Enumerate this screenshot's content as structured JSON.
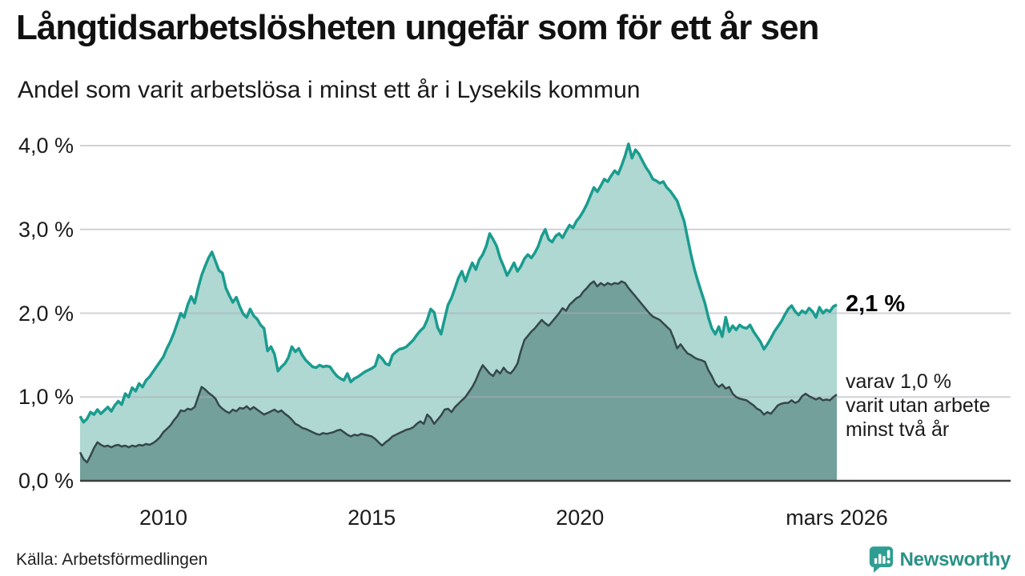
{
  "header": {
    "title": "Långtidsarbetslösheten ungefär som för ett år sen",
    "subtitle": "Andel som varit arbetslösa i minst ett år i Lysekils kommun"
  },
  "chart_data": {
    "type": "area",
    "title": "Långtidsarbetslösheten ungefär som för ett år sen",
    "subtitle": "Andel som varit arbetslösa i minst ett år i Lysekils kommun",
    "x_unit": "månad",
    "x_range": [
      2008.0,
      2026.1667
    ],
    "ylim": [
      0,
      4.0
    ],
    "grid": true,
    "colors": {
      "line1": "#1a9c8f",
      "fill1": "#aed8d1",
      "line2": "#35474c",
      "fill2": "#73a09a",
      "gridline": "rgba(172,172,184,0.55)",
      "axis": "#3f3f3f"
    },
    "yticks": [
      {
        "value": 4.0,
        "label": "4,0 %"
      },
      {
        "value": 3.0,
        "label": "3,0 %"
      },
      {
        "value": 2.0,
        "label": "2,0 %"
      },
      {
        "value": 1.0,
        "label": "1,0 %"
      },
      {
        "value": 0.0,
        "label": "0,0 %"
      }
    ],
    "xticks": [
      {
        "t": 2010.0,
        "label": "2010"
      },
      {
        "t": 2015.0,
        "label": "2015"
      },
      {
        "t": 2020.0,
        "label": "2020"
      },
      {
        "t": 2026.1667,
        "label": "mars 2026"
      }
    ],
    "series": [
      {
        "name": "Andel arbetslösa minst ett år",
        "end_value": 2.1,
        "values": [
          0.77,
          0.7,
          0.74,
          0.82,
          0.79,
          0.85,
          0.8,
          0.84,
          0.88,
          0.83,
          0.9,
          0.95,
          0.91,
          1.04,
          1.0,
          1.11,
          1.07,
          1.16,
          1.12,
          1.2,
          1.24,
          1.3,
          1.36,
          1.42,
          1.48,
          1.58,
          1.66,
          1.76,
          1.88,
          2.0,
          1.95,
          2.1,
          2.2,
          2.12,
          2.3,
          2.45,
          2.56,
          2.66,
          2.73,
          2.62,
          2.51,
          2.48,
          2.3,
          2.21,
          2.13,
          2.19,
          2.08,
          1.99,
          1.95,
          2.05,
          1.97,
          1.93,
          1.86,
          1.82,
          1.55,
          1.6,
          1.51,
          1.31,
          1.36,
          1.4,
          1.47,
          1.6,
          1.54,
          1.58,
          1.5,
          1.44,
          1.4,
          1.36,
          1.35,
          1.38,
          1.36,
          1.37,
          1.36,
          1.3,
          1.25,
          1.22,
          1.2,
          1.28,
          1.18,
          1.22,
          1.24,
          1.27,
          1.3,
          1.32,
          1.34,
          1.37,
          1.5,
          1.46,
          1.4,
          1.38,
          1.5,
          1.54,
          1.57,
          1.58,
          1.6,
          1.64,
          1.68,
          1.74,
          1.79,
          1.83,
          1.92,
          2.05,
          2.01,
          1.83,
          1.75,
          1.93,
          2.1,
          2.18,
          2.3,
          2.42,
          2.5,
          2.38,
          2.5,
          2.6,
          2.52,
          2.64,
          2.7,
          2.8,
          2.95,
          2.88,
          2.8,
          2.66,
          2.56,
          2.45,
          2.52,
          2.6,
          2.5,
          2.56,
          2.65,
          2.7,
          2.66,
          2.72,
          2.8,
          2.92,
          3.0,
          2.88,
          2.85,
          2.92,
          2.95,
          2.9,
          2.98,
          3.05,
          3.02,
          3.1,
          3.15,
          3.22,
          3.3,
          3.4,
          3.5,
          3.45,
          3.52,
          3.6,
          3.57,
          3.64,
          3.7,
          3.66,
          3.76,
          3.88,
          4.02,
          3.85,
          3.95,
          3.9,
          3.82,
          3.74,
          3.68,
          3.6,
          3.58,
          3.55,
          3.57,
          3.5,
          3.46,
          3.4,
          3.34,
          3.22,
          3.1,
          2.9,
          2.7,
          2.52,
          2.38,
          2.25,
          2.12,
          1.95,
          1.82,
          1.75,
          1.84,
          1.72,
          1.95,
          1.78,
          1.85,
          1.8,
          1.86,
          1.83,
          1.82,
          1.86,
          1.78,
          1.72,
          1.66,
          1.57,
          1.63,
          1.7,
          1.78,
          1.84,
          1.9,
          1.98,
          2.05,
          2.09,
          2.02,
          1.98,
          2.03,
          2.0,
          2.06,
          2.02,
          1.95,
          2.07,
          2.0,
          2.04,
          2.02,
          2.08,
          2.1
        ]
      },
      {
        "name": "Andel arbetslösa minst två år",
        "end_value": 1.0,
        "values": [
          0.34,
          0.26,
          0.22,
          0.3,
          0.39,
          0.46,
          0.43,
          0.41,
          0.42,
          0.4,
          0.42,
          0.43,
          0.41,
          0.42,
          0.4,
          0.42,
          0.41,
          0.43,
          0.42,
          0.44,
          0.43,
          0.45,
          0.48,
          0.52,
          0.58,
          0.62,
          0.66,
          0.72,
          0.77,
          0.84,
          0.83,
          0.86,
          0.85,
          0.88,
          1.0,
          1.12,
          1.09,
          1.05,
          1.02,
          0.98,
          0.9,
          0.86,
          0.83,
          0.81,
          0.85,
          0.83,
          0.87,
          0.86,
          0.89,
          0.85,
          0.88,
          0.85,
          0.82,
          0.79,
          0.81,
          0.83,
          0.85,
          0.82,
          0.84,
          0.8,
          0.77,
          0.73,
          0.68,
          0.66,
          0.63,
          0.62,
          0.6,
          0.58,
          0.56,
          0.55,
          0.57,
          0.56,
          0.57,
          0.58,
          0.6,
          0.61,
          0.58,
          0.55,
          0.53,
          0.55,
          0.54,
          0.56,
          0.55,
          0.54,
          0.53,
          0.5,
          0.46,
          0.42,
          0.46,
          0.49,
          0.53,
          0.55,
          0.57,
          0.59,
          0.61,
          0.62,
          0.64,
          0.68,
          0.71,
          0.68,
          0.79,
          0.75,
          0.68,
          0.73,
          0.78,
          0.85,
          0.86,
          0.82,
          0.88,
          0.92,
          0.96,
          1.0,
          1.06,
          1.12,
          1.2,
          1.3,
          1.38,
          1.33,
          1.28,
          1.25,
          1.32,
          1.28,
          1.35,
          1.3,
          1.28,
          1.33,
          1.4,
          1.55,
          1.68,
          1.73,
          1.78,
          1.82,
          1.87,
          1.92,
          1.88,
          1.85,
          1.9,
          1.95,
          2.0,
          2.06,
          2.03,
          2.1,
          2.14,
          2.18,
          2.2,
          2.26,
          2.3,
          2.35,
          2.38,
          2.32,
          2.36,
          2.33,
          2.36,
          2.34,
          2.36,
          2.35,
          2.38,
          2.36,
          2.3,
          2.25,
          2.2,
          2.15,
          2.1,
          2.05,
          2.0,
          1.96,
          1.94,
          1.92,
          1.88,
          1.84,
          1.8,
          1.7,
          1.58,
          1.63,
          1.57,
          1.52,
          1.5,
          1.47,
          1.45,
          1.44,
          1.42,
          1.32,
          1.25,
          1.16,
          1.12,
          1.15,
          1.1,
          1.12,
          1.04,
          1.0,
          0.98,
          0.97,
          0.96,
          0.93,
          0.9,
          0.86,
          0.84,
          0.79,
          0.82,
          0.8,
          0.85,
          0.9,
          0.92,
          0.93,
          0.93,
          0.96,
          0.93,
          0.95,
          1.01,
          1.04,
          1.01,
          0.99,
          0.97,
          0.99,
          0.96,
          0.97,
          0.96,
          1.0,
          1.03
        ]
      }
    ],
    "end_labels": {
      "primary": "2,1 %",
      "secondary_1": "varav 1,0 %",
      "secondary_2": "varit utan arbete",
      "secondary_3": "minst två år"
    }
  },
  "footer": {
    "source": "Källa: Arbetsförmedlingen",
    "brand": "Newsworthy"
  }
}
